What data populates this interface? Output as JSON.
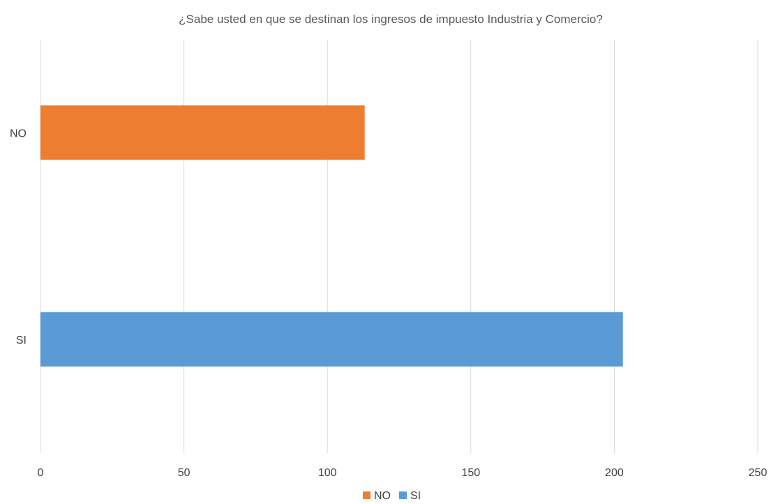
{
  "chart_data": {
    "type": "bar",
    "orientation": "horizontal",
    "title": "¿Sabe  usted en que se destinan  los ingresos de impuesto  Industria y Comercio?",
    "categories": [
      "NO",
      "SI"
    ],
    "series": [
      {
        "name": "NO",
        "color": "#ED7D31",
        "category": "NO",
        "value": 113
      },
      {
        "name": "SI",
        "color": "#5B9BD5",
        "category": "SI",
        "value": 203
      }
    ],
    "xlim": [
      0,
      250
    ],
    "xticks": [
      "0",
      "50",
      "100",
      "150",
      "200",
      "250"
    ],
    "grid": true,
    "legend": "bottom-center"
  }
}
